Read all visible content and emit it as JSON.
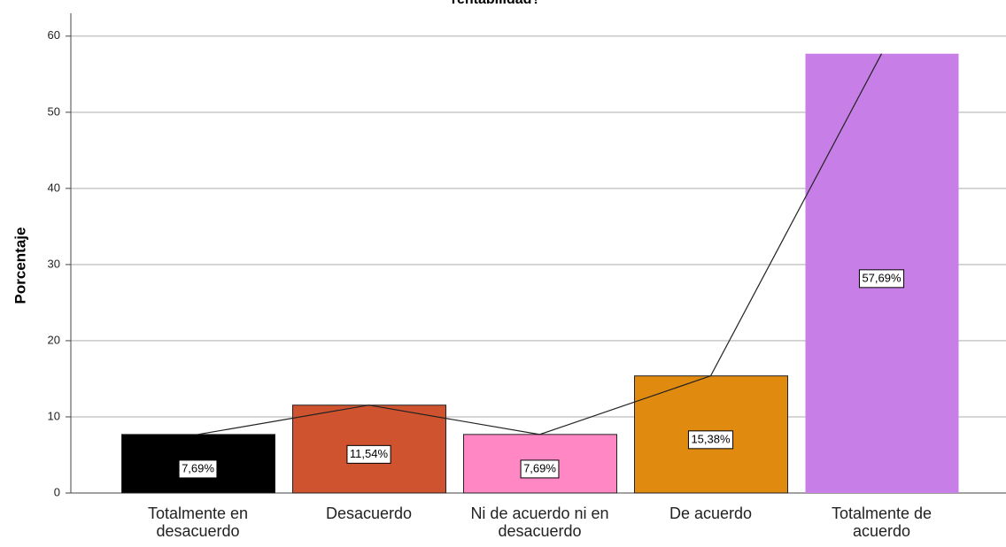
{
  "chart_data": {
    "type": "bar",
    "title": "rentabilidad?",
    "ylabel": "Porcentaje",
    "categories": [
      "Totalmente en desacuerdo",
      "Desacuerdo",
      "Ni de acuerdo ni en desacuerdo",
      "De acuerdo",
      "Totalmente de acuerdo"
    ],
    "values": [
      7.69,
      11.54,
      7.69,
      15.38,
      57.69
    ],
    "value_labels": [
      "7,69%",
      "11,54%",
      "7,69%",
      "15,38%",
      "57,69%"
    ],
    "colors": [
      "#000000",
      "#d0532f",
      "#ff88c4",
      "#e08a10",
      "#c77ee6"
    ],
    "ylim": [
      0,
      63
    ],
    "yticks": [
      0,
      10,
      20,
      30,
      40,
      50,
      60
    ],
    "grid": true
  }
}
